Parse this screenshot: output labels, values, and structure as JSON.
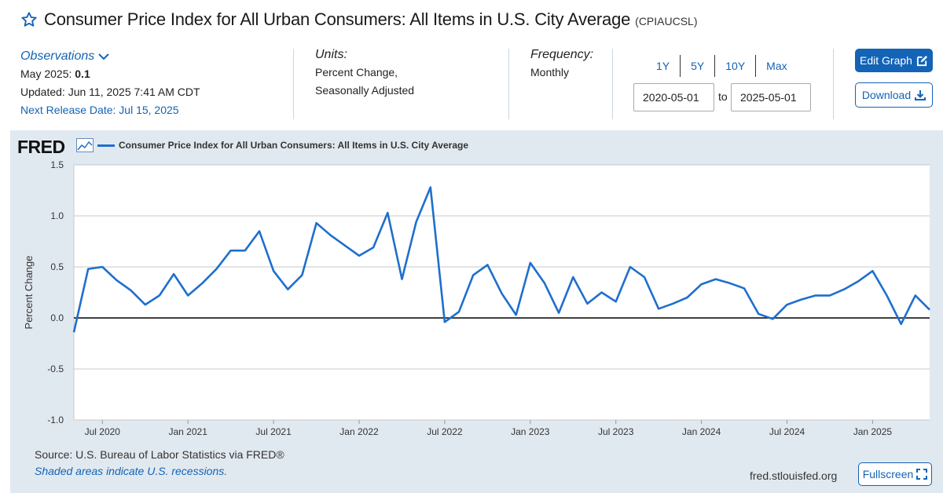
{
  "header": {
    "title": "Consumer Price Index for All Urban Consumers: All Items in U.S. City Average",
    "series_id": "(CPIAUCSL)"
  },
  "observations": {
    "link_label": "Observations",
    "latest_prefix": "May 2025: ",
    "latest_value": "0.1",
    "updated": "Updated: Jun 11, 2025 7:41 AM CDT",
    "next_release": "Next Release Date: Jul 15, 2025"
  },
  "units": {
    "label": "Units:",
    "line1": "Percent Change,",
    "line2": "Seasonally Adjusted"
  },
  "frequency": {
    "label": "Frequency:",
    "value": "Monthly"
  },
  "range_buttons": [
    "1Y",
    "5Y",
    "10Y",
    "Max"
  ],
  "date_range": {
    "start": "2020-05-01",
    "to_label": "to",
    "end": "2025-05-01"
  },
  "buttons": {
    "edit_graph": "Edit Graph",
    "download": "Download",
    "fullscreen": "Fullscreen"
  },
  "footer": {
    "source": "Source: U.S. Bureau of Labor Statistics via FRED®",
    "shaded": "Shaded areas indicate U.S. recessions.",
    "url": "fred.stlouisfed.org"
  },
  "logo_text": "FRED",
  "colors": {
    "accent": "#1363b6",
    "series": "#1f6fce",
    "panel": "#e1e9f0"
  },
  "chart_data": {
    "type": "line",
    "title": "",
    "ylabel": "Percent Change",
    "xlabel": "",
    "ylim": [
      -1.0,
      1.5
    ],
    "yticks": [
      "1.5",
      "1.0",
      "0.5",
      "0.0",
      "-0.5",
      "-1.0"
    ],
    "xticks": [
      {
        "label": "Jul 2020",
        "date": "2020-07"
      },
      {
        "label": "Jan 2021",
        "date": "2021-01"
      },
      {
        "label": "Jul 2021",
        "date": "2021-07"
      },
      {
        "label": "Jan 2022",
        "date": "2022-01"
      },
      {
        "label": "Jul 2022",
        "date": "2022-07"
      },
      {
        "label": "Jan 2023",
        "date": "2023-01"
      },
      {
        "label": "Jul 2023",
        "date": "2023-07"
      },
      {
        "label": "Jan 2024",
        "date": "2024-01"
      },
      {
        "label": "Jul 2024",
        "date": "2024-07"
      },
      {
        "label": "Jan 2025",
        "date": "2025-01"
      }
    ],
    "grid": true,
    "legend_position": "top-left",
    "series": [
      {
        "name": "Consumer Price Index for All Urban Consumers: All Items in U.S. City Average",
        "x": [
          "2020-05",
          "2020-06",
          "2020-07",
          "2020-08",
          "2020-09",
          "2020-10",
          "2020-11",
          "2020-12",
          "2021-01",
          "2021-02",
          "2021-03",
          "2021-04",
          "2021-05",
          "2021-06",
          "2021-07",
          "2021-08",
          "2021-09",
          "2021-10",
          "2021-11",
          "2021-12",
          "2022-01",
          "2022-02",
          "2022-03",
          "2022-04",
          "2022-05",
          "2022-06",
          "2022-07",
          "2022-08",
          "2022-09",
          "2022-10",
          "2022-11",
          "2022-12",
          "2023-01",
          "2023-02",
          "2023-03",
          "2023-04",
          "2023-05",
          "2023-06",
          "2023-07",
          "2023-08",
          "2023-09",
          "2023-10",
          "2023-11",
          "2023-12",
          "2024-01",
          "2024-02",
          "2024-03",
          "2024-04",
          "2024-05",
          "2024-06",
          "2024-07",
          "2024-08",
          "2024-09",
          "2024-10",
          "2024-11",
          "2024-12",
          "2025-01",
          "2025-02",
          "2025-03",
          "2025-04",
          "2025-05"
        ],
        "values": [
          -0.14,
          0.48,
          0.5,
          0.37,
          0.27,
          0.13,
          0.22,
          0.43,
          0.22,
          0.34,
          0.48,
          0.66,
          0.66,
          0.85,
          0.46,
          0.28,
          0.42,
          0.93,
          0.81,
          0.71,
          0.61,
          0.69,
          1.03,
          0.38,
          0.94,
          1.28,
          -0.04,
          0.06,
          0.42,
          0.52,
          0.24,
          0.03,
          0.54,
          0.34,
          0.05,
          0.4,
          0.14,
          0.25,
          0.16,
          0.5,
          0.4,
          0.09,
          0.14,
          0.2,
          0.33,
          0.38,
          0.34,
          0.29,
          0.04,
          -0.01,
          0.13,
          0.18,
          0.22,
          0.22,
          0.28,
          0.36,
          0.46,
          0.22,
          -0.06,
          0.22,
          0.08
        ]
      }
    ]
  }
}
